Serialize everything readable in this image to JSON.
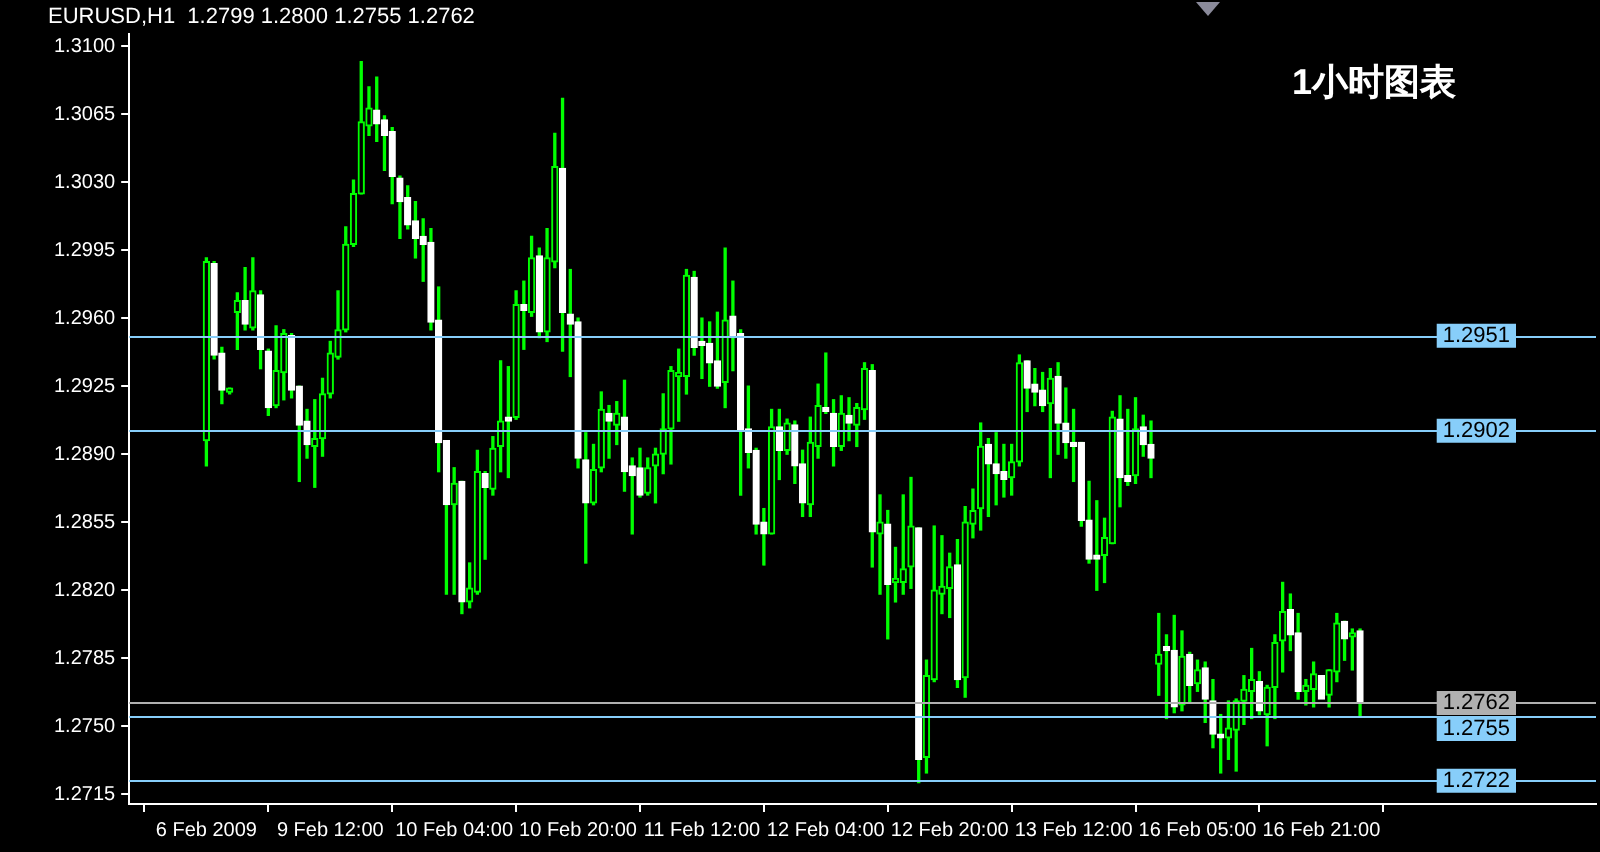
{
  "chart_data": {
    "type": "candlestick",
    "title": "EURUSD,H1  1.2799 1.2800 1.2755 1.2762",
    "annotations": [
      "1小时图表"
    ],
    "color": "#00ff00",
    "colors": [
      "#00ff00",
      "#ffffff",
      "#ffffff",
      "#00ff00",
      "#00ff00",
      "#ffffff",
      "#00ff00",
      "#ffffff",
      "#ffffff",
      "#00ff00",
      "#00ff00",
      "#ffffff",
      "#ffffff",
      "#ffffff",
      "#00ff00",
      "#00ff00",
      "#00ff00",
      "#00ff00",
      "#00ff00",
      "#00ff00",
      "#00ff00",
      "#00ff00",
      "#ffffff",
      "#ffffff",
      "#ffffff",
      "#ffffff",
      "#ffffff",
      "#ffffff",
      "#ffffff",
      "#ffffff",
      "#ffffff",
      "#ffffff",
      "#00ff00",
      "#ffffff",
      "#00ff00",
      "#00ff00",
      "#ffffff",
      "#00ff00",
      "#00ff00",
      "#ffffff",
      "#00ff00",
      "#ffffff",
      "#00ff00",
      "#ffffff",
      "#00ff00",
      "#00ff00",
      "#ffffff",
      "#ffffff",
      "#ffffff",
      "#ffffff",
      "#00ff00",
      "#00ff00",
      "#ffffff",
      "#00ff00",
      "#ffffff",
      "#ffffff",
      "#ffffff",
      "#00ff00",
      "#00ff00",
      "#00ff00",
      "#00ff00",
      "#00ff00",
      "#00ff00",
      "#ffffff",
      "#ffffff",
      "#ffffff",
      "#ffffff",
      "#00ff00",
      "#ffffff",
      "#ffffff",
      "#ffffff",
      "#ffffff",
      "#ffffff",
      "#00ff00",
      "#ffffff",
      "#00ff00",
      "#ffffff",
      "#ffffff",
      "#00ff00",
      "#00ff00",
      "#ffffff",
      "#ffffff",
      "#00ff00",
      "#ffffff",
      "#00ff00",
      "#00ff00",
      "#ffffff",
      "#00ff00",
      "#ffffff",
      "#00ff00",
      "#00ff00",
      "#00ff00",
      "#ffffff",
      "#00ff00",
      "#00ff00",
      "#00ff00",
      "#00ff00",
      "#ffffff",
      "#00ff00",
      "#00ff00",
      "#00ff00",
      "#ffffff",
      "#ffffff",
      "#ffffff",
      "#00ff00",
      "#00ff00",
      "#ffffff",
      "#ffffff",
      "#ffffff",
      "#00ff00",
      "#ffffff",
      "#ffffff",
      "#ffffff",
      "#ffffff",
      "#ffffff",
      "#ffffff",
      "#00ff00",
      "#00ff00",
      "#ffffff",
      "#ffffff",
      "#00ff00",
      "#ffffff",
      "#ffffff",
      "#00ff00",
      "#ffffff",
      "#ffffff",
      "#00ff00",
      "#ffffff",
      "#00ff00",
      "#ffffff",
      "#ffffff",
      "#ffffff",
      "#00ff00",
      "#00ff00",
      "#00ff00",
      "#00ff00",
      "#ffffff",
      "#00ff00",
      "#00ff00",
      "#00ff00",
      "#ffffff",
      "#ffffff",
      "#00ff00",
      "#00ff00",
      "#ffffff",
      "#00ff00",
      "#00ff00",
      "#ffffff",
      "#00ff00",
      "#ffffff"
    ],
    "categories": [
      "6 Feb 2009",
      null,
      null,
      null,
      null,
      null,
      null,
      null,
      null,
      null,
      null,
      null,
      null,
      null,
      null,
      null,
      "9 Feb 12:00",
      null,
      null,
      null,
      null,
      null,
      null,
      null,
      null,
      null,
      null,
      null,
      null,
      null,
      null,
      null,
      "10 Feb 04:00",
      null,
      null,
      null,
      null,
      null,
      null,
      null,
      null,
      null,
      null,
      null,
      null,
      null,
      null,
      null,
      "10 Feb 20:00",
      null,
      null,
      null,
      null,
      null,
      null,
      null,
      null,
      null,
      null,
      null,
      null,
      null,
      null,
      null,
      "11 Feb 12:00",
      null,
      null,
      null,
      null,
      null,
      null,
      null,
      null,
      null,
      null,
      null,
      null,
      null,
      null,
      null,
      "12 Feb 04:00",
      null,
      null,
      null,
      null,
      null,
      null,
      null,
      null,
      null,
      null,
      null,
      null,
      null,
      null,
      null,
      "12 Feb 20:00",
      null,
      null,
      null,
      null,
      null,
      null,
      null,
      null,
      null,
      null,
      null,
      null,
      null,
      null,
      null,
      "13 Feb 12:00",
      null,
      null,
      null,
      null,
      null,
      null,
      null,
      null,
      null,
      null,
      null,
      null,
      null,
      null,
      null,
      "16 Feb 05:00",
      null,
      null,
      null,
      null,
      null,
      null,
      null,
      null,
      null,
      null,
      null,
      null,
      null,
      null,
      null,
      "16 Feb 21:00",
      null,
      null,
      null,
      null,
      null
    ],
    "ohlc": [
      [
        1.2897,
        1.2991,
        1.2884,
        1.2989
      ],
      [
        1.2988,
        1.2989,
        1.2939,
        1.2941
      ],
      [
        1.2942,
        1.2945,
        1.2916,
        1.2923
      ],
      [
        1.2922,
        1.2924,
        1.2921,
        1.2924
      ],
      [
        1.2963,
        1.2973,
        1.2944,
        1.2969
      ],
      [
        1.2969,
        1.2986,
        1.2954,
        1.2957
      ],
      [
        1.2955,
        1.2991,
        1.2954,
        1.2974
      ],
      [
        1.2972,
        1.2974,
        1.2934,
        1.2944
      ],
      [
        1.2943,
        1.2944,
        1.291,
        1.2914
      ],
      [
        1.2915,
        1.2956,
        1.2914,
        1.2933
      ],
      [
        1.2932,
        1.2954,
        1.2918,
        1.2952
      ],
      [
        1.2951,
        1.2952,
        1.2919,
        1.2923
      ],
      [
        1.2925,
        1.2925,
        1.2876,
        1.2905
      ],
      [
        1.2907,
        1.2913,
        1.2888,
        1.2895
      ],
      [
        1.2894,
        1.2918,
        1.2873,
        1.2898
      ],
      [
        1.2898,
        1.2929,
        1.2889,
        1.2921
      ],
      [
        1.2921,
        1.2948,
        1.2919,
        1.2942
      ],
      [
        1.294,
        1.2974,
        1.2939,
        1.2954
      ],
      [
        1.2954,
        1.3007,
        1.2953,
        1.2998
      ],
      [
        1.2998,
        1.3031,
        1.2997,
        1.3024
      ],
      [
        1.3024,
        1.3092,
        1.3024,
        1.3061
      ],
      [
        1.3059,
        1.3079,
        1.3054,
        1.3068
      ],
      [
        1.3067,
        1.3084,
        1.3051,
        1.306
      ],
      [
        1.3062,
        1.3064,
        1.3036,
        1.3054
      ],
      [
        1.3056,
        1.3058,
        1.3019,
        1.3033
      ],
      [
        1.3032,
        1.3033,
        1.3001,
        1.302
      ],
      [
        1.3022,
        1.3028,
        1.3006,
        1.3008
      ],
      [
        1.301,
        1.302,
        1.2991,
        1.3001
      ],
      [
        1.3002,
        1.3011,
        1.2979,
        1.2998
      ],
      [
        1.2999,
        1.3006,
        1.2954,
        1.2958
      ],
      [
        1.2959,
        1.2976,
        1.2881,
        1.2896
      ],
      [
        1.2897,
        1.2897,
        1.2818,
        1.2864
      ],
      [
        1.2864,
        1.2883,
        1.2818,
        1.2875
      ],
      [
        1.2876,
        1.2876,
        1.2808,
        1.2814
      ],
      [
        1.2814,
        1.2834,
        1.2811,
        1.2821
      ],
      [
        1.2819,
        1.2892,
        1.2818,
        1.2881
      ],
      [
        1.288,
        1.2881,
        1.2836,
        1.2873
      ],
      [
        1.2872,
        1.2899,
        1.2869,
        1.2893
      ],
      [
        1.2894,
        1.2938,
        1.2881,
        1.2907
      ],
      [
        1.2909,
        1.2935,
        1.2878,
        1.2907
      ],
      [
        1.2909,
        1.2974,
        1.2908,
        1.2967
      ],
      [
        1.2967,
        1.2979,
        1.2944,
        1.2964
      ],
      [
        1.2963,
        1.3002,
        1.2961,
        1.2991
      ],
      [
        1.2992,
        1.2996,
        1.295,
        1.2953
      ],
      [
        1.2953,
        1.3006,
        1.2948,
        1.2991
      ],
      [
        1.2989,
        1.3055,
        1.2986,
        1.3038
      ],
      [
        1.3037,
        1.3073,
        1.2943,
        1.2963
      ],
      [
        1.2962,
        1.2985,
        1.293,
        1.2957
      ],
      [
        1.2958,
        1.296,
        1.2883,
        1.2888
      ],
      [
        1.2887,
        1.2901,
        1.2834,
        1.2865
      ],
      [
        1.2865,
        1.2895,
        1.2864,
        1.2882
      ],
      [
        1.2883,
        1.2922,
        1.2881,
        1.2913
      ],
      [
        1.2911,
        1.2915,
        1.2888,
        1.2907
      ],
      [
        1.2905,
        1.2917,
        1.2895,
        1.2911
      ],
      [
        1.2909,
        1.2928,
        1.2871,
        1.2881
      ],
      [
        1.2884,
        1.2888,
        1.2849,
        1.2879
      ],
      [
        1.2883,
        1.2893,
        1.2868,
        1.2869
      ],
      [
        1.287,
        1.2888,
        1.2869,
        1.2883
      ],
      [
        1.2884,
        1.2893,
        1.2865,
        1.289
      ],
      [
        1.289,
        1.2921,
        1.288,
        1.2903
      ],
      [
        1.2903,
        1.2935,
        1.2885,
        1.2933
      ],
      [
        1.293,
        1.2944,
        1.2907,
        1.2932
      ],
      [
        1.293,
        1.2985,
        1.2921,
        1.2982
      ],
      [
        1.2981,
        1.2984,
        1.2941,
        1.2945
      ],
      [
        1.2948,
        1.296,
        1.2929,
        1.2946
      ],
      [
        1.2947,
        1.2958,
        1.2925,
        1.2937
      ],
      [
        1.2938,
        1.2963,
        1.2924,
        1.2925
      ],
      [
        1.2927,
        1.2996,
        1.2914,
        1.2959
      ],
      [
        1.2961,
        1.2979,
        1.2933,
        1.295
      ],
      [
        1.2952,
        1.2954,
        1.2869,
        1.2902
      ],
      [
        1.2903,
        1.2925,
        1.2883,
        1.2891
      ],
      [
        1.2892,
        1.2893,
        1.2849,
        1.2854
      ],
      [
        1.2855,
        1.2862,
        1.2833,
        1.2849
      ],
      [
        1.2849,
        1.2913,
        1.2849,
        1.2904
      ],
      [
        1.2904,
        1.2913,
        1.2877,
        1.2892
      ],
      [
        1.2892,
        1.2908,
        1.289,
        1.2906
      ],
      [
        1.2905,
        1.2907,
        1.2875,
        1.2884
      ],
      [
        1.2885,
        1.2892,
        1.2858,
        1.2865
      ],
      [
        1.2864,
        1.2909,
        1.2858,
        1.2896
      ],
      [
        1.2894,
        1.2926,
        1.2888,
        1.2915
      ],
      [
        1.2914,
        1.2942,
        1.2911,
        1.2912
      ],
      [
        1.2911,
        1.2918,
        1.2884,
        1.2894
      ],
      [
        1.2894,
        1.292,
        1.2892,
        1.2911
      ],
      [
        1.291,
        1.2919,
        1.2897,
        1.2906
      ],
      [
        1.2905,
        1.2916,
        1.2894,
        1.2914
      ],
      [
        1.2913,
        1.2937,
        1.2908,
        1.2934
      ],
      [
        1.2933,
        1.2936,
        1.2832,
        1.285
      ],
      [
        1.2849,
        1.2869,
        1.2818,
        1.2855
      ],
      [
        1.2854,
        1.2861,
        1.2795,
        1.2823
      ],
      [
        1.2824,
        1.2842,
        1.2814,
        1.2826
      ],
      [
        1.2824,
        1.2869,
        1.2818,
        1.2831
      ],
      [
        1.2832,
        1.2878,
        1.2821,
        1.2853
      ],
      [
        1.2852,
        1.2852,
        1.2721,
        1.2733
      ],
      [
        1.2734,
        1.2784,
        1.2726,
        1.2776
      ],
      [
        1.2774,
        1.2853,
        1.2773,
        1.282
      ],
      [
        1.2818,
        1.2848,
        1.2808,
        1.2822
      ],
      [
        1.2821,
        1.2839,
        1.2806,
        1.2832
      ],
      [
        1.2833,
        1.2846,
        1.277,
        1.2774
      ],
      [
        1.2775,
        1.2863,
        1.2765,
        1.2855
      ],
      [
        1.2854,
        1.2872,
        1.2847,
        1.2861
      ],
      [
        1.2862,
        1.2906,
        1.2851,
        1.2894
      ],
      [
        1.2895,
        1.2898,
        1.2858,
        1.2885
      ],
      [
        1.2885,
        1.2901,
        1.2864,
        1.288
      ],
      [
        1.2881,
        1.2895,
        1.2868,
        1.2877
      ],
      [
        1.2878,
        1.2895,
        1.2869,
        1.2886
      ],
      [
        1.2886,
        1.2941,
        1.2884,
        1.2937
      ],
      [
        1.2938,
        1.2938,
        1.2912,
        1.2924
      ],
      [
        1.2926,
        1.2934,
        1.2915,
        1.2922
      ],
      [
        1.2923,
        1.2932,
        1.2912,
        1.2915
      ],
      [
        1.2916,
        1.2934,
        1.2878,
        1.2929
      ],
      [
        1.293,
        1.2937,
        1.289,
        1.2906
      ],
      [
        1.2906,
        1.2924,
        1.2888,
        1.2896
      ],
      [
        1.2896,
        1.2913,
        1.2876,
        1.2894
      ],
      [
        1.2896,
        1.2896,
        1.2853,
        1.2856
      ],
      [
        1.2856,
        1.2876,
        1.2834,
        1.2836
      ],
      [
        1.2838,
        1.2866,
        1.282,
        1.2836
      ],
      [
        1.2838,
        1.2857,
        1.2824,
        1.2847
      ],
      [
        1.2844,
        1.2912,
        1.2844,
        1.2909
      ],
      [
        1.2908,
        1.292,
        1.2863,
        1.2878
      ],
      [
        1.2879,
        1.2913,
        1.2874,
        1.2876
      ],
      [
        1.2879,
        1.2919,
        1.2875,
        1.2903
      ],
      [
        1.2904,
        1.291,
        1.2889,
        1.2895
      ],
      [
        1.2895,
        1.2907,
        1.2878,
        1.2888
      ],
      [
        1.2782,
        1.2808,
        1.2766,
        1.2787
      ],
      [
        1.2791,
        1.2797,
        1.2754,
        1.2789
      ],
      [
        1.2789,
        1.2807,
        1.2757,
        1.276
      ],
      [
        1.2761,
        1.2799,
        1.2758,
        1.2786
      ],
      [
        1.2787,
        1.2788,
        1.2762,
        1.2771
      ],
      [
        1.2772,
        1.2784,
        1.2768,
        1.2779
      ],
      [
        1.278,
        1.2783,
        1.2752,
        1.2764
      ],
      [
        1.2763,
        1.2774,
        1.2739,
        1.2746
      ],
      [
        1.2746,
        1.2756,
        1.2726,
        1.2744
      ],
      [
        1.2744,
        1.2763,
        1.2733,
        1.2749
      ],
      [
        1.2748,
        1.2764,
        1.2727,
        1.2763
      ],
      [
        1.2763,
        1.2776,
        1.2751,
        1.2769
      ],
      [
        1.2768,
        1.279,
        1.2754,
        1.2774
      ],
      [
        1.2773,
        1.2778,
        1.2756,
        1.2758
      ],
      [
        1.2756,
        1.2771,
        1.274,
        1.277
      ],
      [
        1.277,
        1.2797,
        1.2754,
        1.2793
      ],
      [
        1.2794,
        1.2824,
        1.2778,
        1.2809
      ],
      [
        1.281,
        1.2818,
        1.2789,
        1.2797
      ],
      [
        1.2798,
        1.2808,
        1.2764,
        1.2768
      ],
      [
        1.2768,
        1.2774,
        1.2761,
        1.2771
      ],
      [
        1.2769,
        1.2783,
        1.276,
        1.2777
      ],
      [
        1.2776,
        1.2776,
        1.2764,
        1.2764
      ],
      [
        1.2766,
        1.2779,
        1.276,
        1.2779
      ],
      [
        1.2778,
        1.2808,
        1.2773,
        1.2803
      ],
      [
        1.2804,
        1.2804,
        1.2784,
        1.2795
      ],
      [
        1.2796,
        1.28,
        1.2779,
        1.2798
      ],
      [
        1.2799,
        1.28,
        1.2755,
        1.2762
      ]
    ],
    "ylim": [
      1.271,
      1.3106
    ],
    "yticks": [
      {
        "value": 1.31,
        "label": "1.3100"
      },
      {
        "value": 1.3065,
        "label": "1.3065"
      },
      {
        "value": 1.303,
        "label": "1.3030"
      },
      {
        "value": 1.2995,
        "label": "1.2995"
      },
      {
        "value": 1.296,
        "label": "1.2960"
      },
      {
        "value": 1.2925,
        "label": "1.2925"
      },
      {
        "value": 1.289,
        "label": "1.2890"
      },
      {
        "value": 1.2855,
        "label": "1.2855"
      },
      {
        "value": 1.282,
        "label": "1.2820"
      },
      {
        "value": 1.2785,
        "label": "1.2785"
      },
      {
        "value": 1.275,
        "label": "1.2750"
      },
      {
        "value": 1.2715,
        "label": "1.2715"
      }
    ],
    "ref_lines": [
      {
        "axis": "y",
        "value": 1.2951,
        "label": "1.2951",
        "color": "#87cefa"
      },
      {
        "axis": "y",
        "value": 1.2902,
        "label": "1.2902",
        "color": "#87cefa"
      },
      {
        "axis": "y",
        "value": 1.2762,
        "label": "1.2762",
        "color": "#b0b0b0"
      },
      {
        "axis": "y",
        "value": 1.2755,
        "label": "1.2755",
        "color": "#87cefa"
      },
      {
        "axis": "y",
        "value": 1.2722,
        "label": "1.2722",
        "color": "#87cefa"
      }
    ]
  }
}
